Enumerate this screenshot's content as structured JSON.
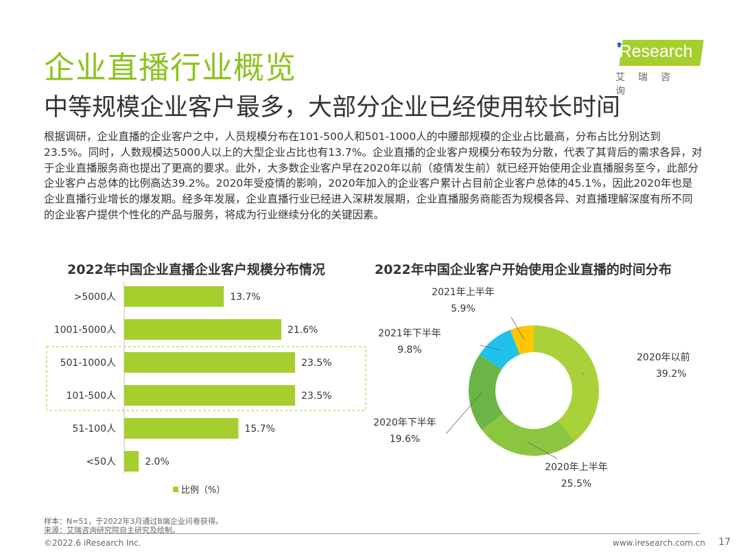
{
  "header": {
    "title": "企业直播行业概览",
    "subtitle": "中等规模企业客户最多，大部分企业已经使用较长时间"
  },
  "logo": {
    "brand": "iResearch",
    "cn": "艾瑞咨询"
  },
  "paragraph": "根据调研，企业直播的企业客户之中，人员规模分布在101-500人和501-1000人的中腰部规模的企业占比最高，分布占比分别达到23.5%。同时，人数规模达5000人以上的大型企业占比也有13.7%。企业直播的企业客户规模分布较为分散，代表了其背后的需求各异，对于企业直播服务商也提出了更高的要求。此外，大多数企业客户早在2020年以前（疫情发生前）就已经开始使用企业直播服务至今，此部分企业客户占总体的比例高达39.2%。2020年受疫情的影响，2020年加入的企业客户累计占目前企业客户总体的45.1%，因此2020年也是企业直播行业增长的爆发期。经多年发展，企业直播行业已经进入深耕发展期，企业直播服务商能否为规模各异、对直播理解深度有所不同的企业客户提供个性化的产品与服务，将成为行业继续分化的关键因素。",
  "chart_data": [
    {
      "type": "bar",
      "orientation": "horizontal",
      "title": "2022年中国企业直播企业客户规模分布情况",
      "categories": [
        ">5000人",
        "1001-5000人",
        "501-1000人",
        "101-500人",
        "51-100人",
        "<50人"
      ],
      "values": [
        13.7,
        21.6,
        23.5,
        23.5,
        15.7,
        2.0
      ],
      "labels": [
        "13.7%",
        "21.6%",
        "23.5%",
        "23.5%",
        "15.7%",
        "2.0%"
      ],
      "legend": "比例（%）",
      "legend_position": "bottom",
      "color": "#a5cf2c",
      "highlighted": [
        "501-1000人",
        "101-500人"
      ]
    },
    {
      "type": "pie",
      "donut": true,
      "title": "2022年中国企业客户开始使用企业直播的时间分布",
      "categories": [
        "2020年以前",
        "2020年上半年",
        "2020年下半年",
        "2021年下半年",
        "2021年上半年"
      ],
      "values": [
        39.2,
        25.5,
        19.6,
        9.8,
        5.9
      ],
      "labels": [
        "39.2%",
        "25.5%",
        "19.6%",
        "9.8%",
        "5.9%"
      ],
      "colors": [
        "#a9d13a",
        "#8cc540",
        "#6ab545",
        "#1ec2ea",
        "#ffc600"
      ]
    }
  ],
  "footer": {
    "sample": "样本：N=51，于2022年3月通过B端企业问卷获得。",
    "source": "来源：艾瑞咨询研究院自主研究及绘制。",
    "copyright": "©2022.6 iResearch Inc.",
    "website": "www.iresearch.com.cn",
    "page": "17"
  }
}
